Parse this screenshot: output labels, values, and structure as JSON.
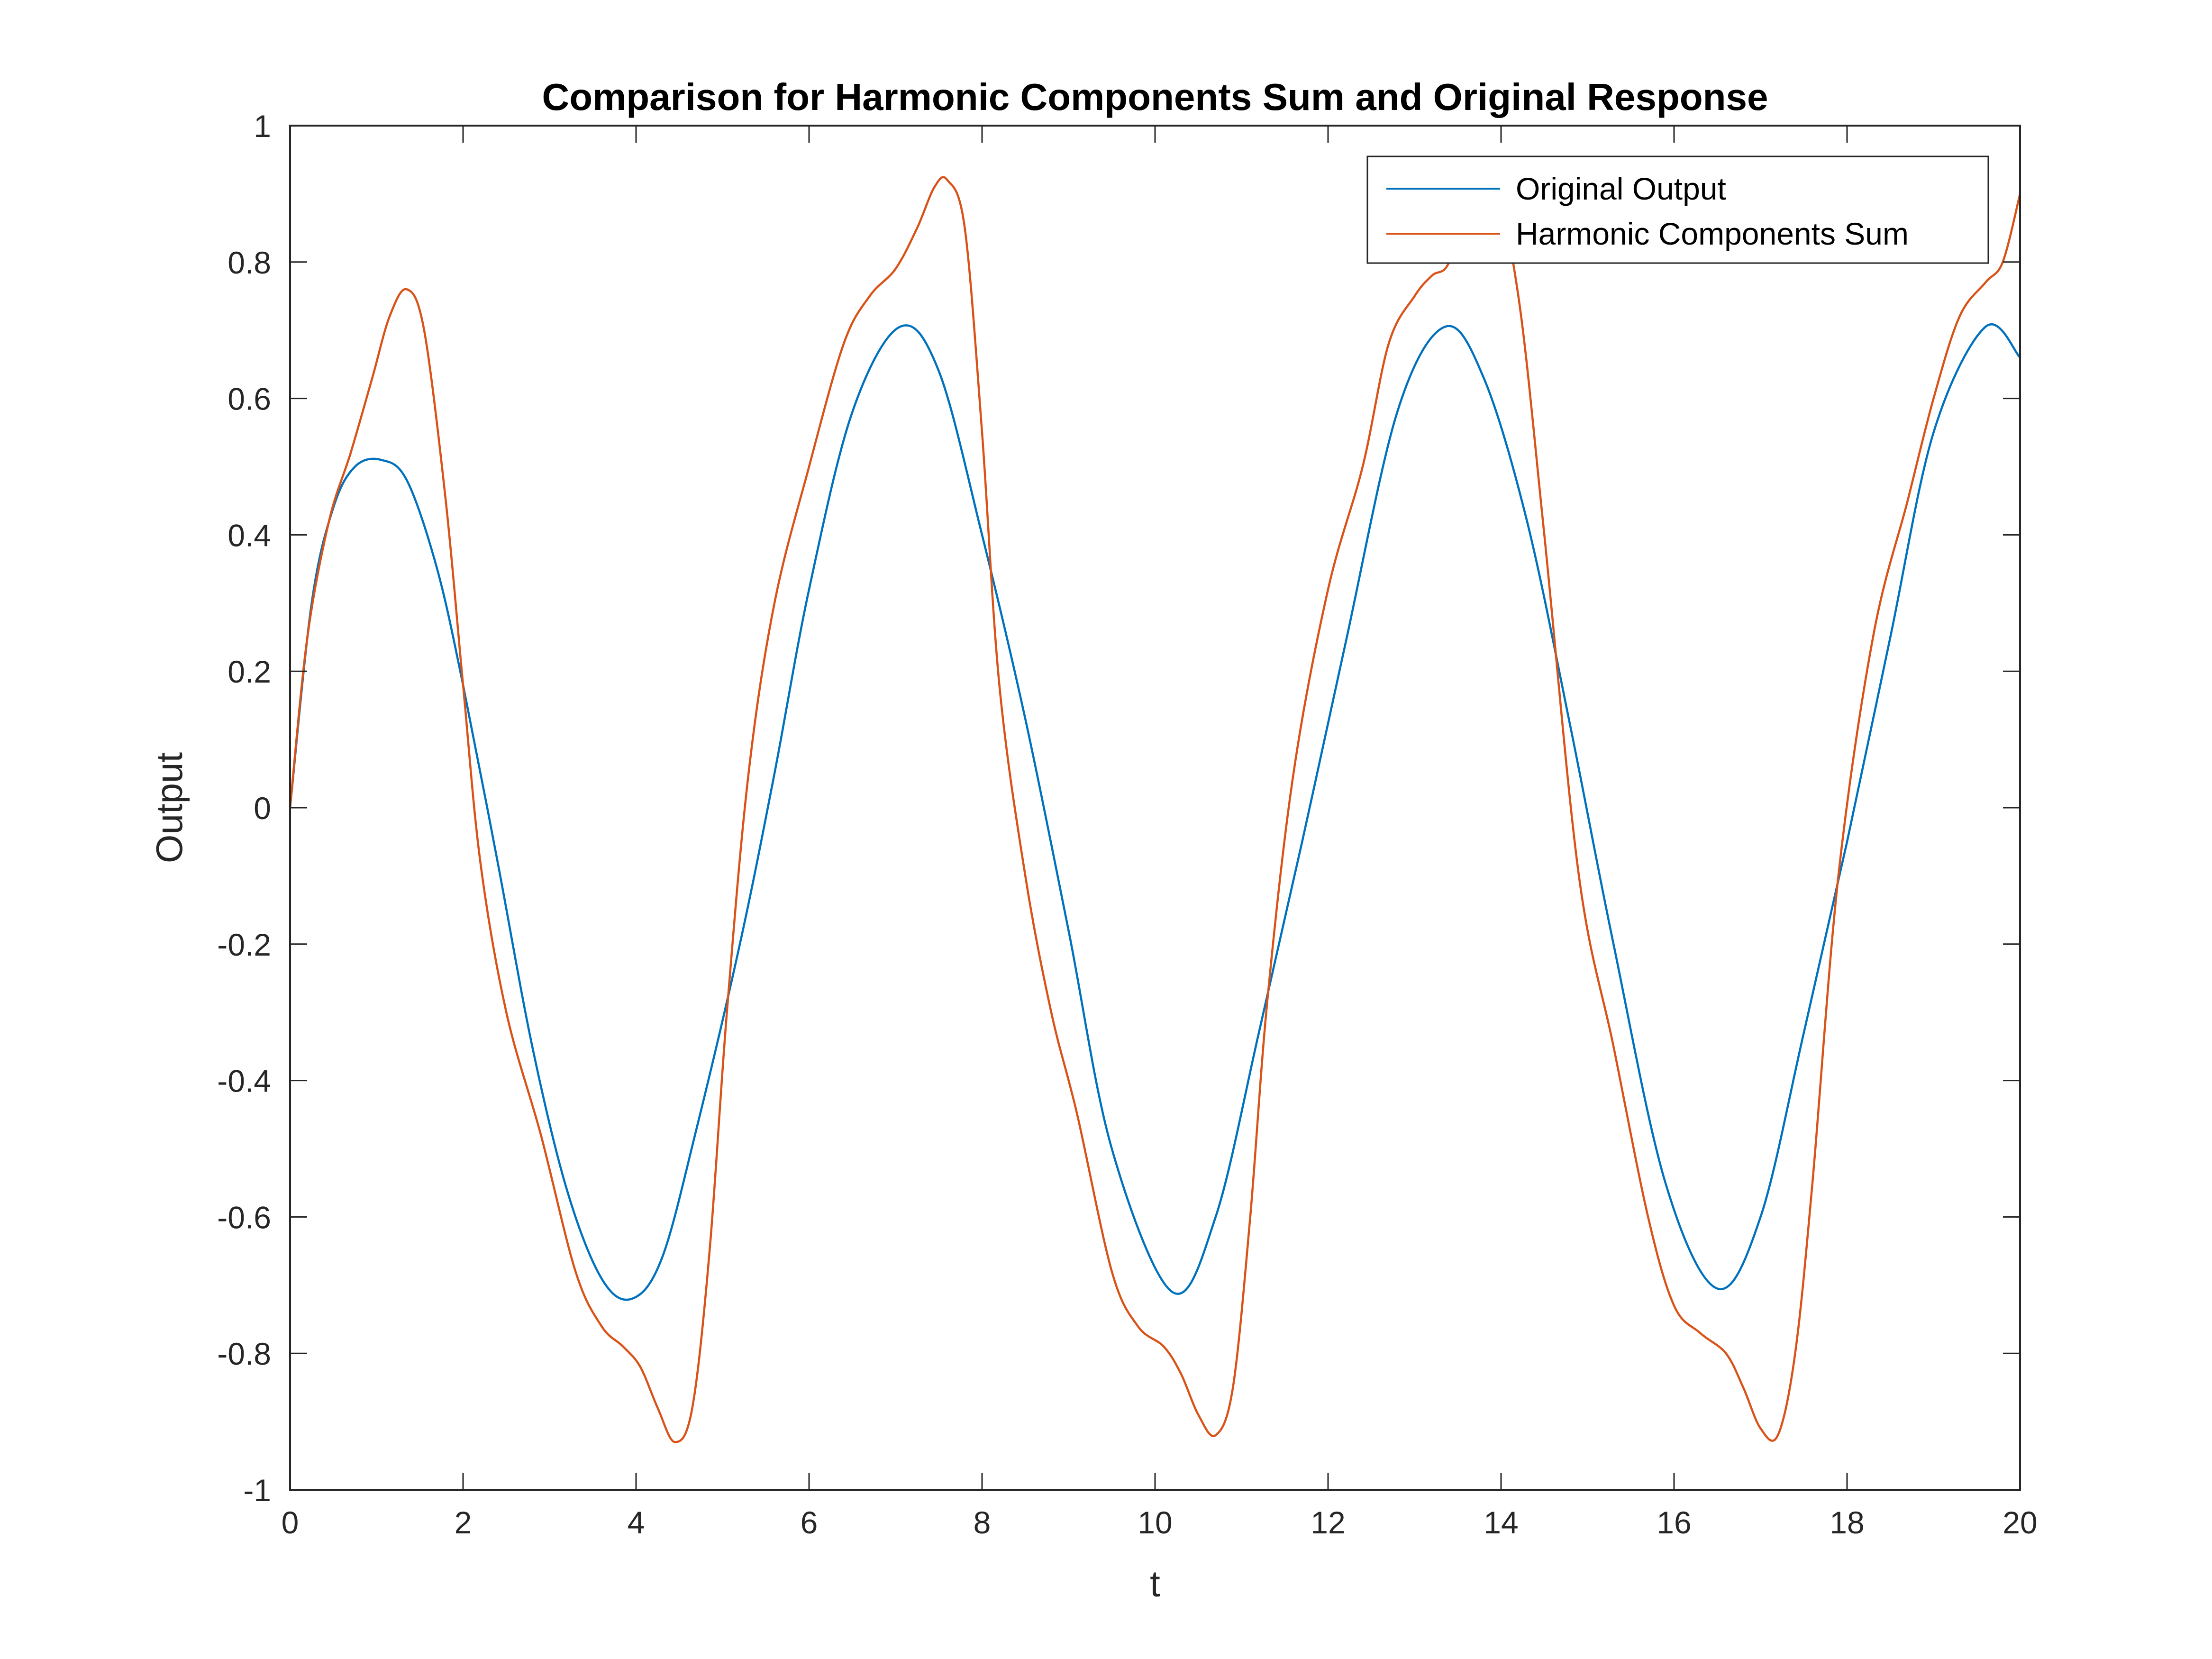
{
  "chart_data": {
    "type": "line",
    "title": "Comparison for Harmonic Components Sum and Original Response",
    "xlabel": "t",
    "ylabel": "Output",
    "xlim": [
      0,
      20
    ],
    "ylim": [
      -1,
      1
    ],
    "xticks": [
      0,
      2,
      4,
      6,
      8,
      10,
      12,
      14,
      16,
      18,
      20
    ],
    "xtick_labels": [
      "0",
      "2",
      "4",
      "6",
      "8",
      "10",
      "12",
      "14",
      "16",
      "18",
      "20"
    ],
    "yticks": [
      -1,
      -0.8,
      -0.6,
      -0.4,
      -0.2,
      0,
      0.2,
      0.4,
      0.6,
      0.8,
      1
    ],
    "ytick_labels": [
      "-1",
      "-0.8",
      "-0.6",
      "-0.4",
      "-0.2",
      "0",
      "0.2",
      "0.4",
      "0.6",
      "0.8",
      "1"
    ],
    "grid": false,
    "legend": {
      "placement": "top-right"
    },
    "series": [
      {
        "name": "Original Output",
        "color": "#0072BD",
        "x": [
          0,
          0.25,
          0.5,
          0.75,
          1.05,
          1.35,
          1.7,
          2.0,
          2.4,
          2.8,
          3.2,
          3.6,
          3.95,
          4.3,
          4.7,
          5.2,
          5.6,
          6.0,
          6.5,
          7.05,
          7.5,
          8.0,
          8.5,
          9.0,
          9.5,
          10.2,
          10.7,
          11.2,
          11.7,
          12.2,
          12.8,
          13.35,
          13.8,
          14.3,
          14.8,
          15.3,
          15.9,
          16.5,
          17.0,
          17.5,
          18.0,
          18.5,
          19.0,
          19.6,
          20.0
        ],
        "y": [
          0.0,
          0.3,
          0.44,
          0.5,
          0.51,
          0.48,
          0.35,
          0.18,
          -0.08,
          -0.35,
          -0.56,
          -0.69,
          -0.72,
          -0.66,
          -0.47,
          -0.2,
          0.05,
          0.32,
          0.58,
          0.705,
          0.64,
          0.4,
          0.13,
          -0.18,
          -0.5,
          -0.71,
          -0.6,
          -0.33,
          -0.05,
          0.24,
          0.58,
          0.705,
          0.63,
          0.42,
          0.12,
          -0.2,
          -0.55,
          -0.705,
          -0.6,
          -0.33,
          -0.05,
          0.25,
          0.55,
          0.705,
          0.66
        ]
      },
      {
        "name": "Harmonic Components Sum",
        "color": "#D95319",
        "x": [
          0,
          0.2,
          0.45,
          0.7,
          0.95,
          1.15,
          1.35,
          1.55,
          1.8,
          2.0,
          2.2,
          2.5,
          2.9,
          3.3,
          3.6,
          3.85,
          4.05,
          4.25,
          4.45,
          4.65,
          4.85,
          5.05,
          5.3,
          5.6,
          6.0,
          6.4,
          6.7,
          7.0,
          7.25,
          7.45,
          7.6,
          7.8,
          8.0,
          8.2,
          8.5,
          8.8,
          9.1,
          9.5,
          9.8,
          10.1,
          10.3,
          10.5,
          10.7,
          10.9,
          11.1,
          11.3,
          11.6,
          12.0,
          12.4,
          12.7,
          13.0,
          13.2,
          13.4,
          13.6,
          13.9,
          14.2,
          14.5,
          14.9,
          15.3,
          15.7,
          16.0,
          16.3,
          16.6,
          16.8,
          17.0,
          17.2,
          17.4,
          17.6,
          17.9,
          18.3,
          18.7,
          19.0,
          19.3,
          19.6,
          19.8,
          20.0
        ],
        "y": [
          0.0,
          0.25,
          0.42,
          0.52,
          0.63,
          0.72,
          0.76,
          0.7,
          0.45,
          0.18,
          -0.08,
          -0.3,
          -0.48,
          -0.68,
          -0.76,
          -0.79,
          -0.82,
          -0.88,
          -0.93,
          -0.88,
          -0.65,
          -0.3,
          0.05,
          0.3,
          0.5,
          0.68,
          0.75,
          0.79,
          0.85,
          0.91,
          0.92,
          0.85,
          0.55,
          0.18,
          -0.1,
          -0.3,
          -0.45,
          -0.68,
          -0.76,
          -0.79,
          -0.83,
          -0.89,
          -0.92,
          -0.85,
          -0.6,
          -0.28,
          0.05,
          0.32,
          0.5,
          0.68,
          0.75,
          0.78,
          0.8,
          0.9,
          0.92,
          0.75,
          0.4,
          -0.1,
          -0.35,
          -0.6,
          -0.73,
          -0.77,
          -0.8,
          -0.85,
          -0.91,
          -0.92,
          -0.8,
          -0.55,
          -0.1,
          0.25,
          0.45,
          0.6,
          0.72,
          0.77,
          0.8,
          0.9
        ]
      }
    ]
  }
}
